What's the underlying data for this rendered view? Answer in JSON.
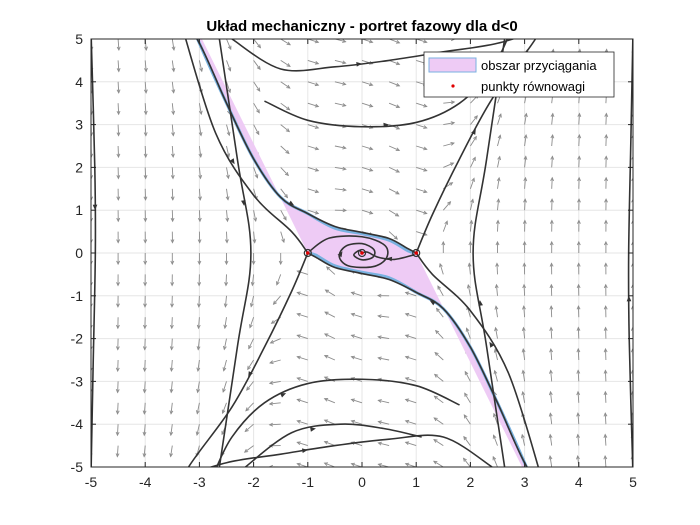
{
  "chart_data": {
    "type": "phase-portrait",
    "title": "Układ mechaniczny - portret fazowy dla d<0",
    "xlim": [
      -5,
      5
    ],
    "ylim": [
      -5,
      5
    ],
    "xticks": [
      -5,
      -4,
      -3,
      -2,
      -1,
      0,
      1,
      2,
      3,
      4,
      5
    ],
    "yticks": [
      -5,
      -4,
      -3,
      -2,
      -1,
      0,
      1,
      2,
      3,
      4,
      5
    ],
    "grid": true,
    "legend_position": "top-right",
    "legend": [
      {
        "label": "obszar przyciągania",
        "kind": "patch"
      },
      {
        "label": "punkty równowagi",
        "kind": "marker"
      }
    ],
    "equilibria": [
      {
        "x": -1,
        "y": 0
      },
      {
        "x": 0,
        "y": 0
      },
      {
        "x": 1,
        "y": 0
      }
    ],
    "basin_boundary": {
      "upper": [
        [
          -3.5,
          6.4
        ],
        [
          -3,
          4.9
        ],
        [
          -2.5,
          3.5
        ],
        [
          -2,
          2.2
        ],
        [
          -1.5,
          1.3
        ],
        [
          -1,
          0.92
        ],
        [
          -0.5,
          0.58
        ],
        [
          0,
          0.45
        ],
        [
          0.5,
          0.3
        ],
        [
          0.85,
          0.05
        ],
        [
          1,
          0
        ]
      ],
      "lower": [
        [
          3.5,
          -6.4
        ],
        [
          3,
          -4.9
        ],
        [
          2.5,
          -3.5
        ],
        [
          2,
          -2.2
        ],
        [
          1.5,
          -1.3
        ],
        [
          1,
          -0.92
        ],
        [
          0.5,
          -0.58
        ],
        [
          0,
          -0.45
        ],
        [
          -0.5,
          -0.3
        ],
        [
          -0.85,
          -0.05
        ],
        [
          -1,
          0
        ]
      ]
    },
    "trajectories": [
      [
        [
          -3.3,
          5.2
        ],
        [
          -2.7,
          2.8
        ],
        [
          -2.0,
          1.35
        ],
        [
          -1.3,
          0.5
        ],
        [
          -1,
          0
        ]
      ],
      [
        [
          3.3,
          -5.2
        ],
        [
          2.7,
          -2.8
        ],
        [
          2.0,
          -1.35
        ],
        [
          1.3,
          -0.5
        ],
        [
          1,
          0
        ]
      ],
      [
        [
          -3.7,
          6.4
        ],
        [
          -3.0,
          4.9
        ],
        [
          -2.5,
          3.5
        ],
        [
          -2.0,
          2.2
        ],
        [
          -1.5,
          1.3
        ],
        [
          -1.0,
          0.92
        ],
        [
          -0.5,
          0.62
        ],
        [
          0,
          0.48
        ],
        [
          0.5,
          0.34
        ],
        [
          0.85,
          0.1
        ],
        [
          1.0,
          0
        ]
      ],
      [
        [
          3.7,
          -6.4
        ],
        [
          3.0,
          -4.9
        ],
        [
          2.5,
          -3.5
        ],
        [
          2.0,
          -2.2
        ],
        [
          1.5,
          -1.3
        ],
        [
          1.0,
          -0.92
        ],
        [
          0.5,
          -0.62
        ],
        [
          0,
          -0.48
        ],
        [
          -0.5,
          -0.34
        ],
        [
          -0.85,
          -0.1
        ],
        [
          -1.0,
          0
        ]
      ],
      [
        [
          -0.97,
          0.04
        ],
        [
          -0.6,
          0.35
        ],
        [
          0,
          0.38
        ],
        [
          0.42,
          0.18
        ],
        [
          0.45,
          -0.12
        ],
        [
          0.2,
          -0.32
        ],
        [
          -0.25,
          -0.3
        ],
        [
          -0.42,
          -0.08
        ],
        [
          -0.3,
          0.16
        ],
        [
          0,
          0.22
        ],
        [
          0.22,
          0.08
        ],
        [
          0.2,
          -0.1
        ],
        [
          0,
          -0.16
        ],
        [
          -0.15,
          -0.05
        ],
        [
          -0.05,
          0.06
        ],
        [
          0,
          0
        ]
      ],
      [
        [
          0.97,
          -0.04
        ],
        [
          0.6,
          -0.15
        ],
        [
          0.3,
          -0.1
        ],
        [
          0.1,
          0.02
        ],
        [
          0,
          0
        ]
      ],
      [
        [
          -1,
          0
        ],
        [
          -1.3,
          -0.9
        ],
        [
          -1.8,
          -2.2
        ],
        [
          -2.4,
          -3.6
        ],
        [
          -3.2,
          -5.0
        ],
        [
          -3.6,
          -6.0
        ]
      ],
      [
        [
          1,
          0
        ],
        [
          1.3,
          0.9
        ],
        [
          1.8,
          2.2
        ],
        [
          2.4,
          3.6
        ],
        [
          3.2,
          5.0
        ],
        [
          3.6,
          6.0
        ]
      ],
      [
        [
          -2.75,
          6.0
        ],
        [
          -2.3,
          2.2
        ],
        [
          -2.05,
          0
        ],
        [
          -2.3,
          -2.2
        ],
        [
          -2.75,
          -6.0
        ]
      ],
      [
        [
          2.75,
          -6.0
        ],
        [
          2.3,
          -2.2
        ],
        [
          2.05,
          0
        ],
        [
          2.3,
          2.2
        ],
        [
          2.75,
          6.0
        ]
      ],
      [
        [
          -2.4,
          5.0
        ],
        [
          -1.5,
          4.3
        ],
        [
          -0.5,
          4.35
        ],
        [
          0.5,
          4.5
        ],
        [
          1.5,
          4.7
        ],
        [
          2.5,
          4.9
        ],
        [
          3.5,
          5.3
        ]
      ],
      [
        [
          -1.8,
          3.55
        ],
        [
          -1.0,
          3.1
        ],
        [
          0,
          2.95
        ],
        [
          1.0,
          3.05
        ],
        [
          1.8,
          3.5
        ],
        [
          2.4,
          4.3
        ],
        [
          2.75,
          5.2
        ]
      ],
      [
        [
          -3.5,
          -5.3
        ],
        [
          -2.5,
          -4.9
        ],
        [
          -1.5,
          -4.7
        ],
        [
          -0.5,
          -4.5
        ],
        [
          0.5,
          -4.35
        ],
        [
          1.5,
          -4.3
        ],
        [
          2.4,
          -5.0
        ]
      ],
      [
        [
          -2.75,
          -5.2
        ],
        [
          -2.4,
          -4.3
        ],
        [
          -1.8,
          -3.5
        ],
        [
          -1.0,
          -3.05
        ],
        [
          0,
          -2.95
        ],
        [
          1.0,
          -3.1
        ],
        [
          1.8,
          -3.55
        ]
      ],
      [
        [
          -2.2,
          -5.05
        ],
        [
          -1.3,
          -4.2
        ],
        [
          -0.4,
          -4.0
        ],
        [
          0.4,
          -4.1
        ],
        [
          1.1,
          -4.3
        ]
      ],
      [
        [
          -5,
          5.2
        ],
        [
          -4.93,
          2.0
        ],
        [
          -4.92,
          0
        ],
        [
          -4.96,
          -2.6
        ],
        [
          -5,
          -5.2
        ]
      ],
      [
        [
          5,
          -5.2
        ],
        [
          4.93,
          -2.0
        ],
        [
          4.92,
          0
        ],
        [
          4.96,
          2.6
        ],
        [
          5,
          5.2
        ]
      ]
    ]
  }
}
